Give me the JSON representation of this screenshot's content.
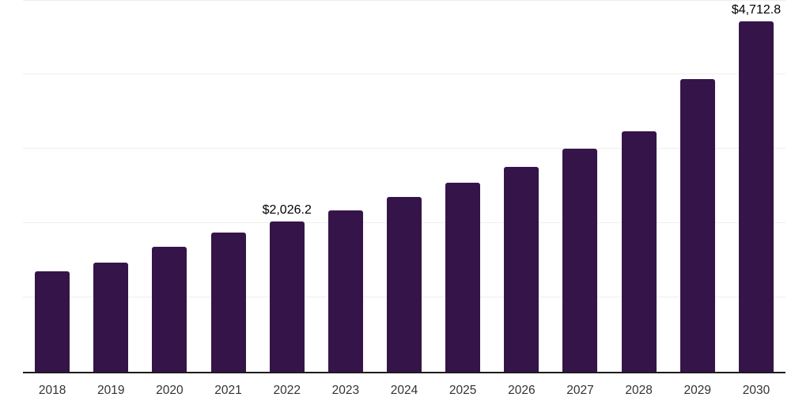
{
  "chart_data": {
    "type": "bar",
    "categories": [
      "2018",
      "2019",
      "2020",
      "2021",
      "2022",
      "2023",
      "2024",
      "2025",
      "2026",
      "2027",
      "2028",
      "2029",
      "2030"
    ],
    "values": [
      1350,
      1468,
      1680,
      1872,
      2026.2,
      2170,
      2356,
      2548,
      2760,
      3000,
      3234,
      3936,
      4712.8
    ],
    "value_labels": {
      "2022": "$2,026.2",
      "2030": "$4,712.8"
    },
    "ylim": [
      0,
      5000
    ],
    "gridline_values": [
      1000,
      2000,
      3000,
      4000,
      5000
    ],
    "grid": "horizontal",
    "legend": "none",
    "colors": {
      "bar": "#351449",
      "axis_line": "#1c1c1c",
      "gridline": "#efefef",
      "tick_label": "#333333",
      "value_label": "#000000",
      "background": "#ffffff"
    }
  }
}
